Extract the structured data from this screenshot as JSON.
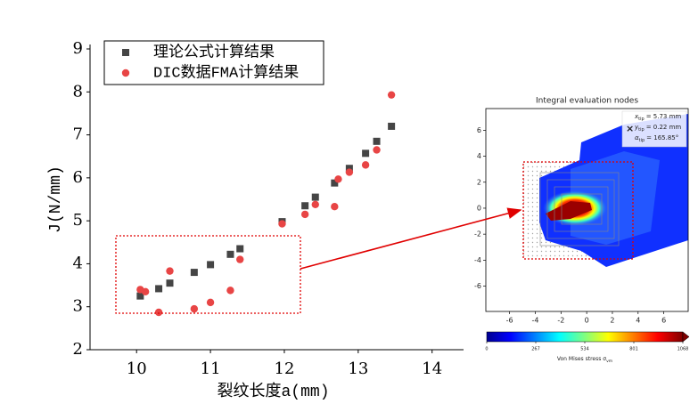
{
  "chart_data": [
    {
      "type": "scatter",
      "x_label": "裂纹长度a(mm)",
      "y_label": "J(N/mm)",
      "xlim": [
        9.37,
        14.45
      ],
      "ylim": [
        2,
        9
      ],
      "xticks": [
        10,
        11,
        12,
        13,
        14
      ],
      "yticks": [
        2,
        3,
        4,
        5,
        6,
        7,
        8,
        9
      ],
      "legend": "upper left",
      "series": [
        {
          "name": "理论公式计算结果",
          "color": "#454545",
          "marker": "square",
          "x": [
            10.05,
            10.3,
            10.45,
            10.78,
            11.0,
            11.27,
            11.4,
            11.97,
            12.28,
            12.42,
            12.68,
            12.88,
            13.1,
            13.25,
            13.45
          ],
          "values": [
            3.25,
            3.42,
            3.55,
            3.8,
            3.98,
            4.22,
            4.35,
            4.98,
            5.35,
            5.55,
            5.88,
            6.22,
            6.57,
            6.85,
            7.2
          ]
        },
        {
          "name": "DIC数据FMA计算结果",
          "color": "#e84545",
          "marker": "circle",
          "x": [
            10.05,
            10.12,
            10.3,
            10.45,
            10.78,
            11.0,
            11.27,
            11.4,
            11.97,
            12.28,
            12.42,
            12.68,
            12.73,
            12.88,
            13.1,
            13.25,
            13.45
          ],
          "values": [
            3.4,
            3.35,
            2.87,
            3.83,
            2.95,
            3.1,
            3.38,
            4.1,
            4.93,
            5.15,
            5.38,
            5.33,
            5.97,
            6.13,
            6.3,
            6.65,
            7.93
          ]
        }
      ]
    },
    {
      "type": "heatmap",
      "title": "Integral evaluation nodes",
      "xlim": [
        -7.85,
        7.9
      ],
      "ylim": [
        -7.95,
        7.67
      ],
      "xticks": [
        -6,
        -4,
        -2,
        0,
        2,
        4,
        6
      ],
      "yticks": [
        -6,
        -4,
        -2,
        0,
        2,
        4,
        6
      ],
      "colorbar": {
        "lim": [
          0,
          1068
        ],
        "ticks": [
          0,
          267,
          534,
          801,
          1068
        ],
        "label": "Von Mises stress σ",
        "label_sub": "vm"
      },
      "annotations": [
        {
          "symbol": "x",
          "sub": "tip",
          "text": "= 5.73 mm"
        },
        {
          "symbol": "y",
          "sub": "tip",
          "text": "= 0.22 mm"
        },
        {
          "symbol": "α",
          "sub": "tip",
          "text": "= 165.85°"
        }
      ]
    }
  ]
}
